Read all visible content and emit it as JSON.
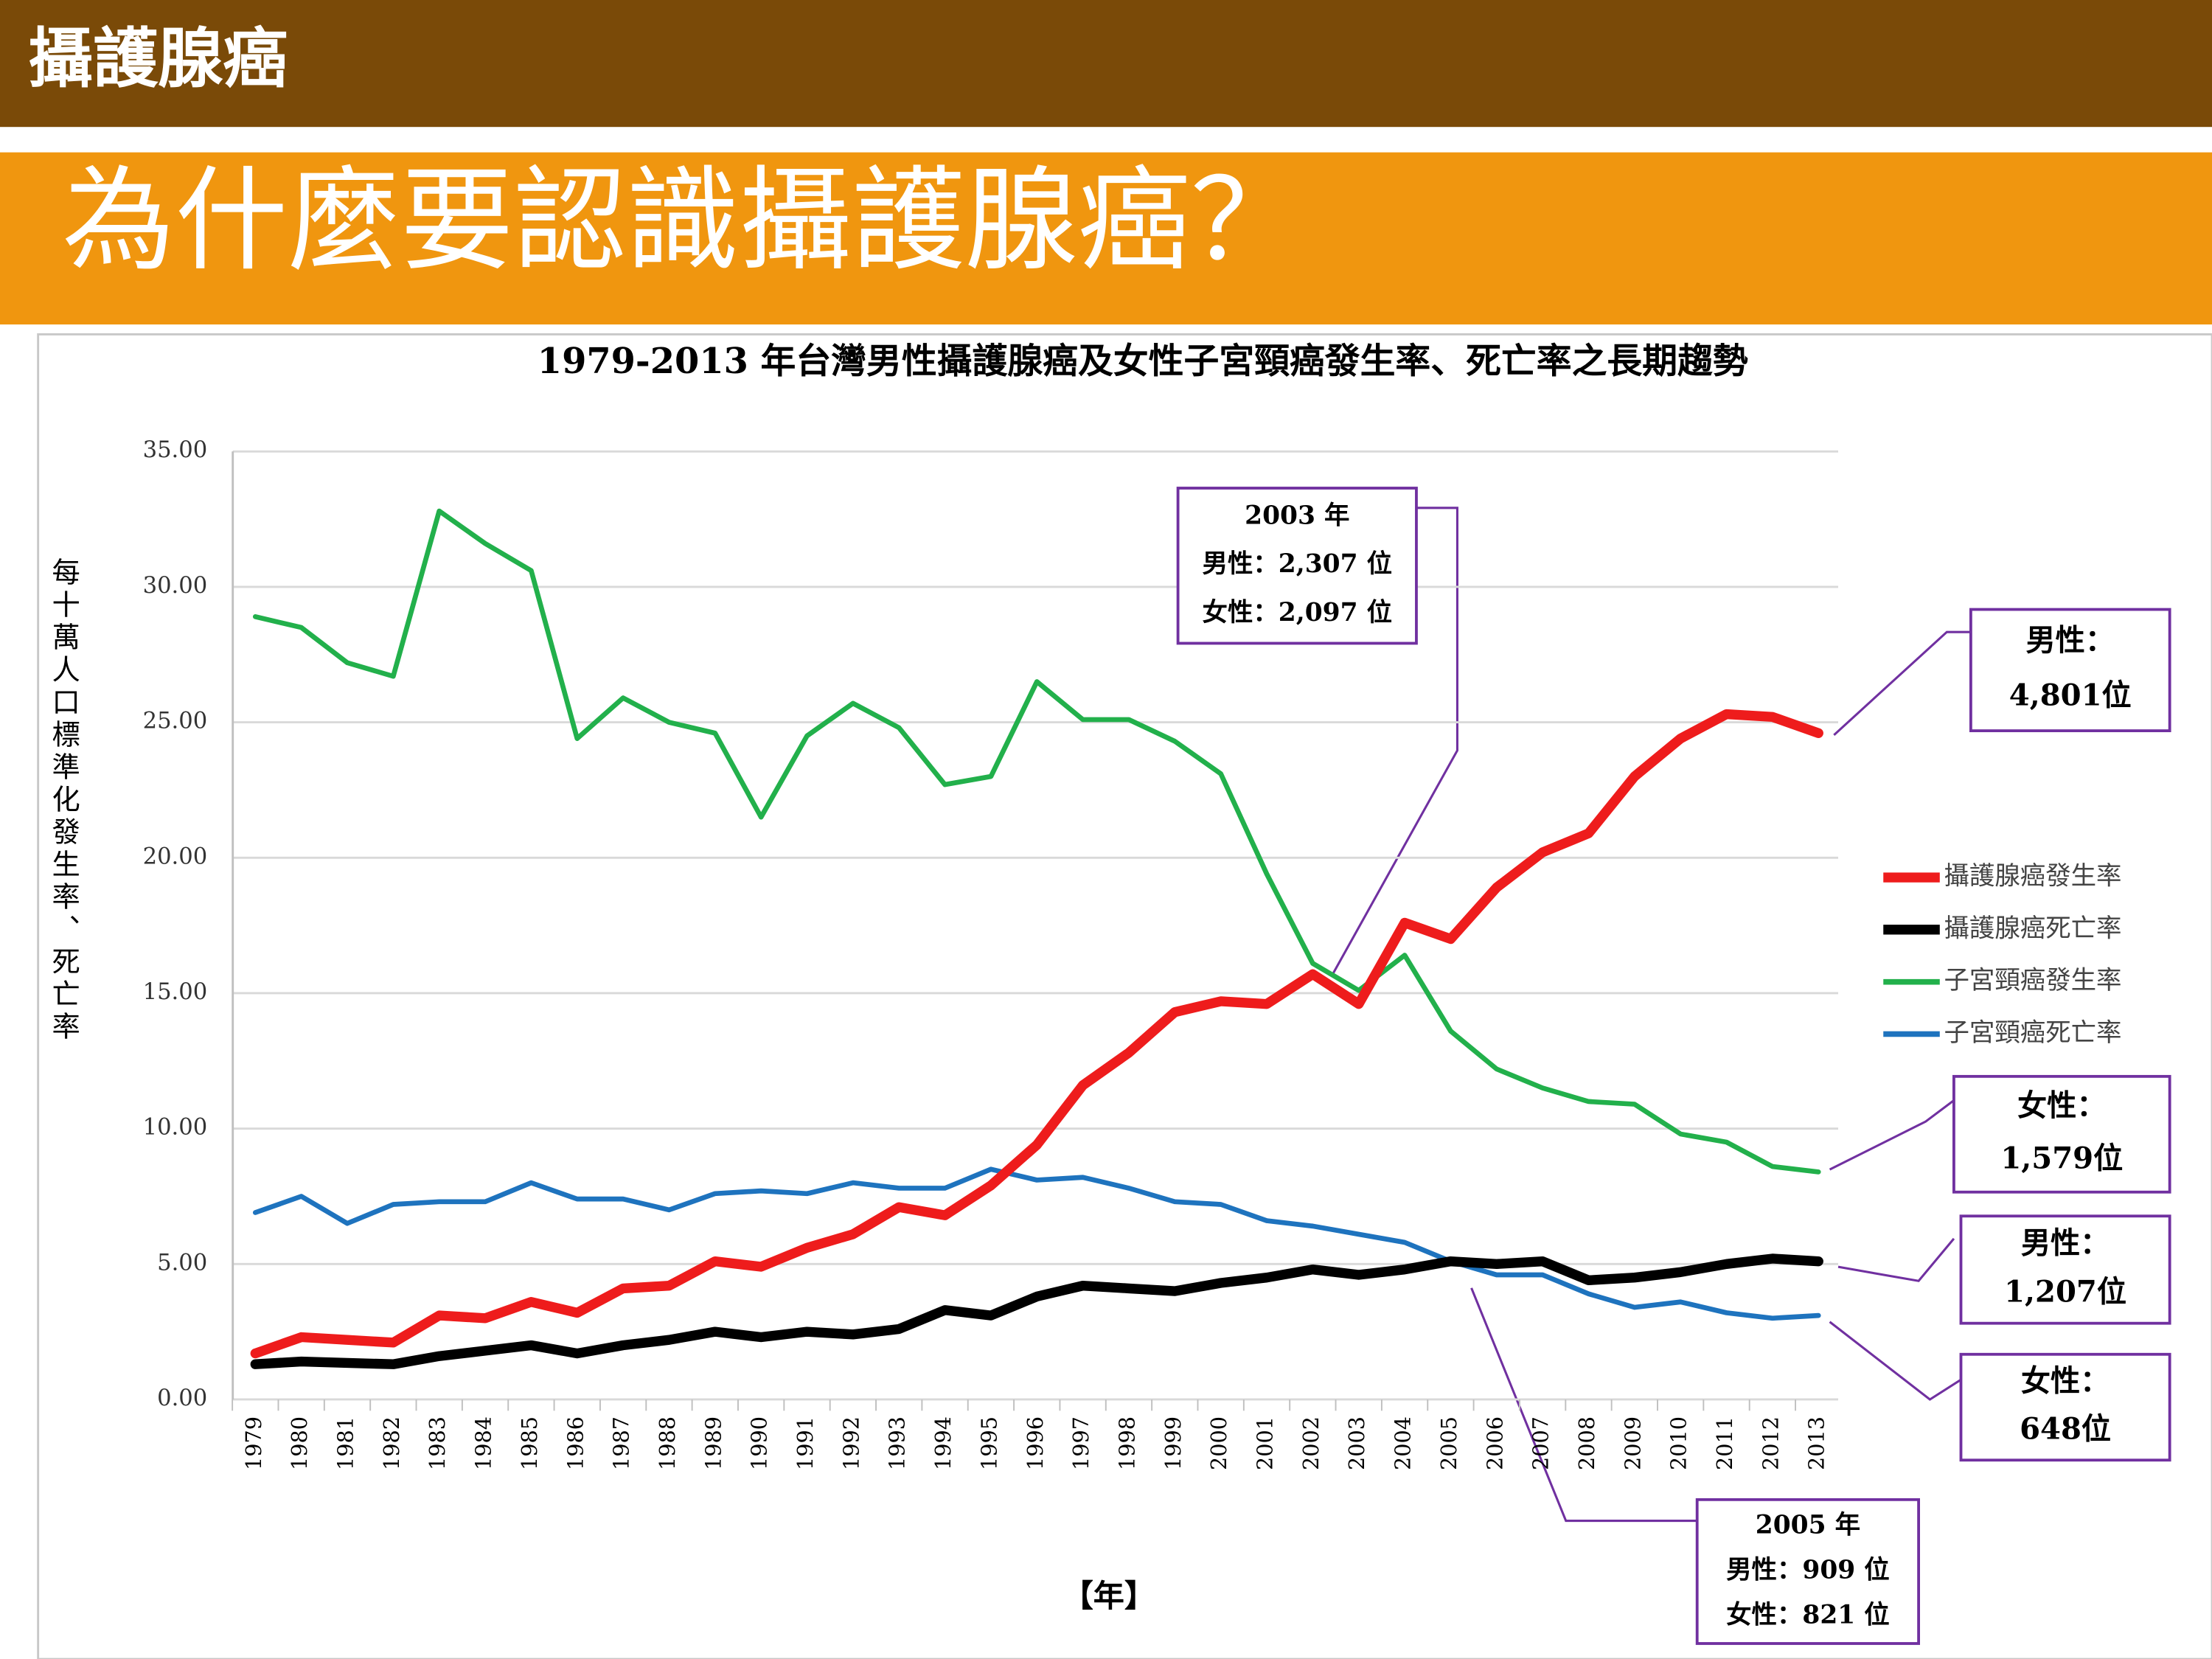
{
  "header": {
    "title": "攝護腺癌"
  },
  "slide": {
    "title": "為什麼要認識攝護腺癌？"
  },
  "chart_data": {
    "type": "line",
    "title": "1979-2013 年台灣男性攝護腺癌及女性子宮頸癌發生率、死亡率之長期趨勢",
    "ylabel": "每十萬人口標準化發生率、死亡率",
    "xlabel": "【年】",
    "categories": [
      "1979",
      "1980",
      "1981",
      "1982",
      "1983",
      "1984",
      "1985",
      "1986",
      "1987",
      "1988",
      "1989",
      "1990",
      "1991",
      "1992",
      "1993",
      "1994",
      "1995",
      "1996",
      "1997",
      "1998",
      "1999",
      "2000",
      "2001",
      "2002",
      "2003",
      "2004",
      "2005",
      "2006",
      "2007",
      "2008",
      "2009",
      "2010",
      "2011",
      "2012",
      "2013"
    ],
    "ylim": [
      0,
      35
    ],
    "yticks": [
      {
        "value": 0,
        "label": "0.00"
      },
      {
        "value": 5,
        "label": "5.00"
      },
      {
        "value": 10,
        "label": "10.00"
      },
      {
        "value": 15,
        "label": "15.00"
      },
      {
        "value": 20,
        "label": "20.00"
      },
      {
        "value": 25,
        "label": "25.00"
      },
      {
        "value": 30,
        "label": "30.00"
      },
      {
        "value": 35,
        "label": "35.00"
      }
    ],
    "grid": true,
    "legend": "right",
    "series": [
      {
        "name": "攝護腺癌發生率",
        "color": "#ee1c1c",
        "values": [
          1.7,
          2.3,
          2.2,
          2.1,
          3.1,
          3.0,
          3.6,
          3.2,
          4.1,
          4.2,
          5.1,
          4.9,
          5.6,
          6.1,
          7.1,
          6.8,
          7.9,
          9.4,
          11.6,
          12.8,
          14.3,
          14.7,
          14.6,
          15.7,
          14.6,
          17.6,
          17.0,
          18.9,
          20.2,
          20.9,
          23.0,
          24.4,
          25.3,
          25.2,
          24.6
        ]
      },
      {
        "name": "攝護腺癌死亡率",
        "color": "#000000",
        "values": [
          1.3,
          1.4,
          1.35,
          1.3,
          1.6,
          1.8,
          2.0,
          1.7,
          2.0,
          2.2,
          2.5,
          2.3,
          2.5,
          2.4,
          2.6,
          3.3,
          3.1,
          3.8,
          4.2,
          4.1,
          4.0,
          4.3,
          4.5,
          4.8,
          4.6,
          4.8,
          5.1,
          5.0,
          5.1,
          4.4,
          4.5,
          4.7,
          5.0,
          5.2,
          5.1
        ]
      },
      {
        "name": "子宮頸癌發生率",
        "color": "#22b04b",
        "values": [
          28.9,
          28.5,
          27.2,
          26.7,
          32.8,
          31.6,
          30.6,
          24.4,
          25.9,
          25.0,
          24.6,
          21.5,
          24.5,
          25.7,
          24.8,
          22.7,
          23.0,
          26.5,
          25.1,
          25.1,
          24.3,
          23.1,
          19.4,
          16.1,
          15.1,
          16.4,
          13.6,
          12.2,
          11.5,
          11.0,
          10.9,
          9.8,
          9.5,
          8.6,
          8.4
        ]
      },
      {
        "name": "子宮頸癌死亡率",
        "color": "#1e73be",
        "values": [
          6.9,
          7.5,
          6.5,
          7.2,
          7.3,
          7.3,
          8.0,
          7.4,
          7.4,
          7.0,
          7.6,
          7.7,
          7.6,
          8.0,
          7.8,
          7.8,
          8.5,
          8.1,
          8.2,
          7.8,
          7.3,
          7.2,
          6.6,
          6.4,
          6.1,
          5.8,
          5.1,
          4.6,
          4.6,
          3.9,
          3.4,
          3.6,
          3.2,
          3.0,
          3.1
        ]
      }
    ],
    "annotations": [
      {
        "lines": [
          "2003 年",
          "男性：2,307 位",
          "女性：2,097 位"
        ]
      },
      {
        "lines": [
          "男性：",
          "4,801位"
        ]
      },
      {
        "lines": [
          "女性：",
          "1,579位"
        ]
      },
      {
        "lines": [
          "男性：",
          "1,207位"
        ]
      },
      {
        "lines": [
          "女性：",
          "648位"
        ]
      },
      {
        "lines": [
          "2005 年",
          "男性：909 位",
          "女性：821 位"
        ]
      }
    ]
  }
}
